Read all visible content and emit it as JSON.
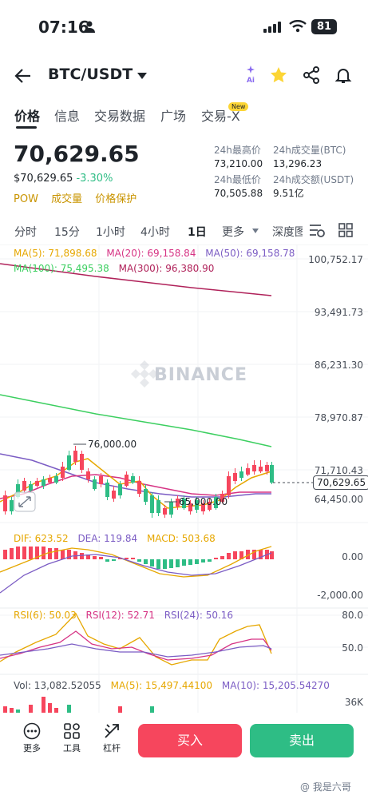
{
  "status_bar": {
    "time": "07:16",
    "battery": "81"
  },
  "header": {
    "pair": "BTC/USDT",
    "ai_label": "Ai"
  },
  "tabs": [
    {
      "label": "价格",
      "active": true
    },
    {
      "label": "信息"
    },
    {
      "label": "交易数据"
    },
    {
      "label": "广场"
    },
    {
      "label": "交易-X",
      "badge": "New"
    }
  ],
  "price": {
    "last": "70,629.65",
    "fiat": "$70,629.65",
    "change": "-3.30%",
    "tags": [
      "POW",
      "成交量",
      "价格保护"
    ]
  },
  "stats": {
    "high_label": "24h最高价",
    "high": "73,210.00",
    "low_label": "24h最低价",
    "low": "70,505.88",
    "vol_btc_label": "24h成交量(BTC)",
    "vol_btc": "13,296.23",
    "vol_usdt_label": "24h成交额(USDT)",
    "vol_usdt": "9.51亿"
  },
  "timeframes": [
    "分时",
    "15分",
    "1小时",
    "4小时",
    "1日",
    "更多",
    "深度图"
  ],
  "active_timeframe": "1日",
  "ma": {
    "ma5": "MA(5): 71,898.68",
    "ma20": "MA(20): 69,158.84",
    "ma50": "MA(50): 69,158.78",
    "ma100": "MA(100): 75,495.38",
    "ma300": "MA(300): 96,380.90"
  },
  "watermark_logo": "BINANCE",
  "price_axis": [
    "100,752.17",
    "93,491.73",
    "86,231.30",
    "78,970.87",
    "71,710.43",
    "64,450.00"
  ],
  "current_price_tag": "70,629.65",
  "annotations": {
    "high": "76,000.00",
    "low": "65,000.00"
  },
  "macd": {
    "dif": "DIF: 623.52",
    "dea": "DEA: 119.84",
    "macd": "MACD: 503.68",
    "axis": [
      "0.00",
      "-2,000.00"
    ]
  },
  "rsi": {
    "rsi6": "RSI(6): 50.03",
    "rsi12": "RSI(12): 52.71",
    "rsi24": "RSI(24): 50.16",
    "axis": [
      "80.0",
      "50.0"
    ]
  },
  "vol": {
    "vol": "Vol: 13,082.52055",
    "ma5": "MA(5): 15,497.44100",
    "ma10": "MA(10): 15,205.54270",
    "axis": [
      "36K"
    ]
  },
  "bottom": {
    "more": "更多",
    "tools": "工具",
    "leverage": "杠杆",
    "buy": "买入",
    "sell": "卖出"
  },
  "footer_watermark": "@ 我是六哥",
  "colors": {
    "up": "#2ebd85",
    "down": "#f6465d",
    "accent": "#fcd535",
    "ma5": "#e6a700",
    "ma20": "#d63384",
    "ma50": "#7b5cc4",
    "ma100": "#3ccf60",
    "ma300": "#b0225a"
  }
}
